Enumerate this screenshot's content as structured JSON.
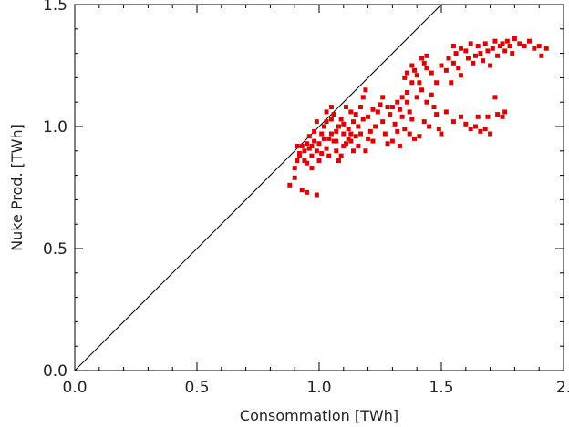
{
  "chart_data": {
    "type": "scatter",
    "xlabel": "Consommation [TWh]",
    "ylabel": "Nuke Prod. [TWh]",
    "xlim": [
      0.0,
      2.0
    ],
    "ylim": [
      0.0,
      1.5
    ],
    "x_ticks": [
      0.0,
      0.5,
      1.0,
      1.5,
      2.0
    ],
    "x_tick_labels": [
      "0.0",
      "0.5",
      "1.0",
      "1.5",
      "2."
    ],
    "y_ticks": [
      0.0,
      0.5,
      1.0,
      1.5
    ],
    "y_tick_labels": [
      "0.0",
      "0.5",
      "1.0",
      "1.5"
    ],
    "grid": false,
    "reference_line": {
      "from": [
        0.0,
        0.0
      ],
      "to": [
        1.5,
        1.5
      ],
      "color": "#000000"
    },
    "marker_color": "#dd0000",
    "marker": "square",
    "points": [
      [
        0.88,
        0.76
      ],
      [
        0.9,
        0.79
      ],
      [
        0.9,
        0.83
      ],
      [
        0.91,
        0.86
      ],
      [
        0.92,
        0.89
      ],
      [
        0.93,
        0.92
      ],
      [
        0.91,
        0.92
      ],
      [
        0.92,
        0.88
      ],
      [
        0.94,
        0.86
      ],
      [
        0.95,
        0.93
      ],
      [
        0.96,
        0.91
      ],
      [
        0.97,
        0.88
      ],
      [
        0.98,
        0.94
      ],
      [
        0.99,
        0.9
      ],
      [
        0.95,
        0.85
      ],
      [
        0.97,
        0.83
      ],
      [
        0.93,
        0.74
      ],
      [
        0.95,
        0.73
      ],
      [
        0.99,
        0.72
      ],
      [
        1.0,
        0.86
      ],
      [
        1.01,
        0.89
      ],
      [
        1.02,
        0.95
      ],
      [
        1.03,
        0.91
      ],
      [
        1.04,
        0.88
      ],
      [
        1.05,
        0.97
      ],
      [
        1.06,
        0.94
      ],
      [
        1.07,
        0.9
      ],
      [
        1.08,
        0.86
      ],
      [
        1.03,
        1.02
      ],
      [
        1.05,
        1.03
      ],
      [
        1.02,
        1.0
      ],
      [
        1.06,
        1.05
      ],
      [
        1.08,
        1.0
      ],
      [
        1.1,
        0.97
      ],
      [
        1.11,
        0.93
      ],
      [
        1.12,
        0.99
      ],
      [
        1.13,
        1.06
      ],
      [
        1.14,
        1.02
      ],
      [
        1.15,
        0.96
      ],
      [
        1.16,
        0.92
      ],
      [
        1.17,
        1.08
      ],
      [
        1.18,
        1.12
      ],
      [
        1.19,
        1.15
      ],
      [
        1.2,
        1.04
      ],
      [
        1.21,
        0.98
      ],
      [
        1.22,
        0.94
      ],
      [
        1.23,
        1.0
      ],
      [
        1.24,
        1.06
      ],
      [
        1.1,
        1.01
      ],
      [
        1.12,
        0.95
      ],
      [
        1.09,
        0.88
      ],
      [
        1.14,
        0.9
      ],
      [
        1.16,
        1.0
      ],
      [
        1.18,
        1.03
      ],
      [
        1.2,
        0.95
      ],
      [
        1.11,
        1.08
      ],
      [
        1.07,
        0.98
      ],
      [
        1.13,
        0.97
      ],
      [
        1.25,
        1.09
      ],
      [
        1.26,
        1.02
      ],
      [
        1.27,
        0.97
      ],
      [
        1.28,
        0.93
      ],
      [
        1.29,
        1.05
      ],
      [
        1.3,
        1.08
      ],
      [
        1.31,
        1.01
      ],
      [
        1.32,
        0.98
      ],
      [
        1.33,
        1.07
      ],
      [
        1.34,
        1.04
      ],
      [
        1.35,
        0.99
      ],
      [
        1.36,
        1.1
      ],
      [
        1.37,
        1.06
      ],
      [
        1.38,
        1.03
      ],
      [
        1.35,
        1.2
      ],
      [
        1.36,
        1.22
      ],
      [
        1.38,
        1.25
      ],
      [
        1.39,
        1.23
      ],
      [
        1.4,
        1.21
      ],
      [
        1.42,
        1.28
      ],
      [
        1.43,
        1.26
      ],
      [
        1.44,
        1.29
      ],
      [
        1.41,
        1.18
      ],
      [
        1.4,
        1.12
      ],
      [
        1.42,
        1.15
      ],
      [
        1.44,
        1.1
      ],
      [
        1.46,
        1.13
      ],
      [
        1.47,
        1.08
      ],
      [
        1.48,
        1.05
      ],
      [
        1.45,
        1.0
      ],
      [
        1.49,
        0.99
      ],
      [
        1.5,
        0.97
      ],
      [
        1.41,
        0.96
      ],
      [
        1.39,
        0.95
      ],
      [
        1.37,
        0.97
      ],
      [
        1.43,
        1.02
      ],
      [
        1.3,
        0.94
      ],
      [
        1.33,
        0.92
      ],
      [
        1.5,
        1.25
      ],
      [
        1.52,
        1.23
      ],
      [
        1.53,
        1.28
      ],
      [
        1.55,
        1.26
      ],
      [
        1.56,
        1.3
      ],
      [
        1.57,
        1.24
      ],
      [
        1.58,
        1.21
      ],
      [
        1.54,
        1.18
      ],
      [
        1.55,
        1.33
      ],
      [
        1.58,
        1.32
      ],
      [
        1.6,
        1.31
      ],
      [
        1.61,
        1.28
      ],
      [
        1.62,
        1.34
      ],
      [
        1.63,
        1.26
      ],
      [
        1.64,
        1.29
      ],
      [
        1.65,
        1.33
      ],
      [
        1.66,
        1.3
      ],
      [
        1.67,
        1.27
      ],
      [
        1.68,
        1.34
      ],
      [
        1.69,
        1.31
      ],
      [
        1.7,
        1.25
      ],
      [
        1.71,
        1.32
      ],
      [
        1.72,
        1.35
      ],
      [
        1.73,
        1.29
      ],
      [
        1.74,
        1.33
      ],
      [
        1.75,
        1.34
      ],
      [
        1.76,
        1.31
      ],
      [
        1.77,
        1.35
      ],
      [
        1.78,
        1.33
      ],
      [
        1.79,
        1.3
      ],
      [
        1.8,
        1.36
      ],
      [
        1.82,
        1.34
      ],
      [
        1.84,
        1.33
      ],
      [
        1.86,
        1.35
      ],
      [
        1.88,
        1.32
      ],
      [
        1.9,
        1.33
      ],
      [
        1.91,
        1.29
      ],
      [
        1.93,
        1.32
      ],
      [
        1.62,
        0.99
      ],
      [
        1.64,
        1.0
      ],
      [
        1.66,
        0.98
      ],
      [
        1.68,
        0.99
      ],
      [
        1.7,
        0.97
      ],
      [
        1.72,
        1.12
      ],
      [
        1.73,
        1.05
      ],
      [
        1.75,
        1.04
      ],
      [
        1.76,
        1.06
      ],
      [
        1.69,
        1.04
      ],
      [
        1.65,
        1.04
      ],
      [
        1.6,
        1.01
      ],
      [
        1.58,
        1.04
      ],
      [
        1.55,
        1.02
      ],
      [
        1.52,
        1.06
      ],
      [
        1.48,
        1.18
      ],
      [
        1.46,
        1.22
      ],
      [
        1.44,
        1.24
      ],
      [
        1.38,
        1.18
      ],
      [
        1.36,
        1.14
      ],
      [
        1.34,
        1.12
      ],
      [
        1.32,
        1.1
      ],
      [
        1.28,
        1.08
      ],
      [
        1.26,
        1.12
      ],
      [
        1.22,
        1.07
      ],
      [
        1.05,
        1.08
      ],
      [
        1.03,
        1.06
      ],
      [
        0.98,
        0.98
      ],
      [
        0.96,
        0.96
      ],
      [
        0.99,
        1.02
      ],
      [
        1.01,
        0.97
      ],
      [
        1.09,
        1.03
      ],
      [
        1.15,
        1.05
      ],
      [
        1.19,
        0.9
      ],
      [
        0.94,
        0.9
      ],
      [
        0.97,
        0.92
      ],
      [
        1.0,
        0.93
      ],
      [
        1.04,
        0.95
      ],
      [
        1.07,
        0.94
      ],
      [
        1.1,
        0.92
      ],
      [
        1.13,
        0.94
      ],
      [
        1.17,
        0.97
      ]
    ]
  }
}
